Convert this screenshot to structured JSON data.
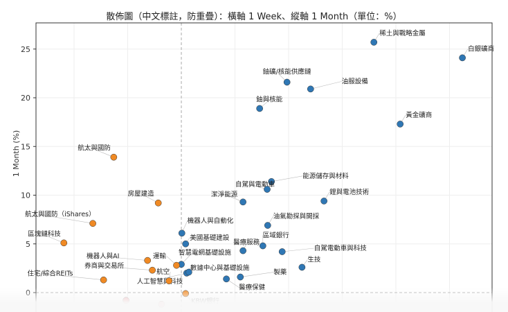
{
  "chart_data": {
    "type": "scatter",
    "title": "散佈圖（中文標註，防重疊）：橫軸 1 Week、縱軸 1 Month（單位：%）",
    "xlabel": "",
    "ylabel": "1 Month (%)",
    "xlim": [
      -2.7,
      5.8
    ],
    "ylim": [
      -2,
      27.7
    ],
    "yticks": [
      0,
      5,
      10,
      15,
      20,
      25
    ],
    "grid": true,
    "colors": {
      "positive": "#2f77b4",
      "negative_week": "#f08a24",
      "negative": "#e8848a"
    },
    "points": [
      {
        "label": "稀土與戰略金屬",
        "x": 3.59,
        "y": 25.7,
        "group": "positive"
      },
      {
        "label": "白銀礦商",
        "x": 5.24,
        "y": 24.1,
        "group": "positive"
      },
      {
        "label": "鈾礦/核能供應鏈",
        "x": 1.97,
        "y": 21.6,
        "group": "positive"
      },
      {
        "label": "油服設備",
        "x": 2.41,
        "y": 20.9,
        "group": "positive"
      },
      {
        "label": "鈾與核能",
        "x": 1.46,
        "y": 18.9,
        "group": "positive"
      },
      {
        "label": "黃金礦商",
        "x": 4.08,
        "y": 17.3,
        "group": "positive"
      },
      {
        "label": "能源儲存與材料",
        "x": 1.68,
        "y": 11.4,
        "group": "positive"
      },
      {
        "label": "自駕與電動車",
        "x": 1.6,
        "y": 10.6,
        "group": "positive"
      },
      {
        "label": "潔淨能源",
        "x": 1.15,
        "y": 9.3,
        "group": "positive"
      },
      {
        "label": "鋰與電池技術",
        "x": 2.66,
        "y": 9.4,
        "group": "positive"
      },
      {
        "label": "油氣勘探與開採",
        "x": 1.61,
        "y": 6.9,
        "group": "positive"
      },
      {
        "label": "機器人與自動化",
        "x": 0.01,
        "y": 6.1,
        "group": "positive"
      },
      {
        "label": "美國基礎建設",
        "x": 0.08,
        "y": 5.0,
        "group": "positive"
      },
      {
        "label": "醫療服務",
        "x": 1.15,
        "y": 4.3,
        "group": "positive"
      },
      {
        "label": "區域銀行",
        "x": 1.52,
        "y": 4.8,
        "group": "positive"
      },
      {
        "label": "自駕電動車與科技",
        "x": 1.88,
        "y": 4.2,
        "group": "positive"
      },
      {
        "label": "智慧電網基礎設施",
        "x": 0.0,
        "y": 2.9,
        "group": "positive"
      },
      {
        "label": "生技",
        "x": 2.25,
        "y": 2.6,
        "group": "positive"
      },
      {
        "label": "人工智慧與科技",
        "x": 0.1,
        "y": 2.0,
        "group": "positive"
      },
      {
        "label": "數據中心與基礎設施",
        "x": 0.14,
        "y": 2.1,
        "group": "positive"
      },
      {
        "label": "醫療保健",
        "x": 0.84,
        "y": 1.4,
        "group": "positive"
      },
      {
        "label": "製藥",
        "x": 1.1,
        "y": 1.6,
        "group": "positive"
      },
      {
        "label": "航太與國防",
        "x": -1.26,
        "y": 13.9,
        "group": "negative_week"
      },
      {
        "label": "房屋建造",
        "x": -0.43,
        "y": 9.2,
        "group": "negative_week"
      },
      {
        "label": "航太與國防（iShares）",
        "x": -1.65,
        "y": 7.1,
        "group": "negative_week"
      },
      {
        "label": "區塊鏈科技",
        "x": -2.19,
        "y": 5.1,
        "group": "negative_week"
      },
      {
        "label": "機器人與AI",
        "x": -0.63,
        "y": 3.3,
        "group": "negative_week"
      },
      {
        "label": "運輸",
        "x": -0.09,
        "y": 2.8,
        "group": "negative_week"
      },
      {
        "label": "券商與交易所",
        "x": -0.54,
        "y": 2.3,
        "group": "negative_week"
      },
      {
        "label": "航空",
        "x": -0.23,
        "y": 1.2,
        "group": "negative_week"
      },
      {
        "label": "住宅/綜合REITs",
        "x": -1.45,
        "y": 1.3,
        "group": "negative_week"
      },
      {
        "label": "KBW銀行",
        "x": 0.08,
        "y": -0.1,
        "group": "negative_week"
      },
      {
        "label": "",
        "x": -1.03,
        "y": -0.8,
        "group": "negative"
      },
      {
        "label": "",
        "x": -0.37,
        "y": -1.2,
        "group": "negative"
      }
    ]
  }
}
